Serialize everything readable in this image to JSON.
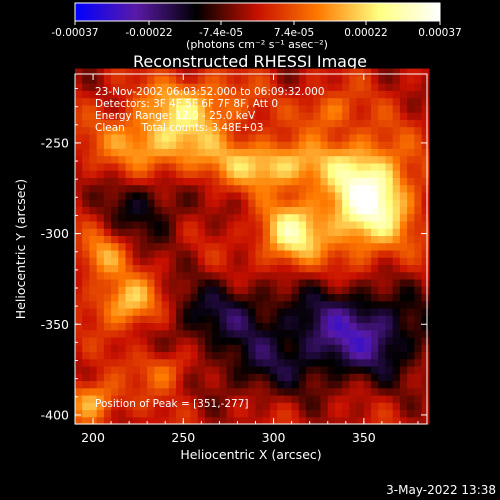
{
  "chart_data": {
    "type": "heatmap",
    "title": "Reconstructed RHESSI Image",
    "xlabel": "Heliocentric X (arcsec)",
    "ylabel": "Heliocentric Y (arcsec)",
    "xlim": [
      190,
      385
    ],
    "ylim": [
      -405,
      -212
    ],
    "xticks": [
      "200",
      "250",
      "300",
      "350"
    ],
    "xtick_values": [
      200,
      250,
      300,
      350
    ],
    "yticks": [
      "-250",
      "-300",
      "-350",
      "-400"
    ],
    "ytick_values": [
      -250,
      -300,
      -350,
      -400
    ],
    "colorbar": {
      "tick_labels": [
        "-0.00037",
        "-0.00022",
        "-7.4e-05",
        "7.4e-05",
        "0.00022",
        "0.00037"
      ],
      "tick_values": [
        -0.00037,
        -0.00022,
        -7.4e-05,
        7.4e-05,
        0.00022,
        0.00037
      ],
      "range": [
        -0.00037,
        0.00037
      ],
      "unit_label": "(photons cm⁻² s⁻¹ asec⁻²)",
      "colors": [
        "#0000ff",
        "#5a1aa8",
        "#000000",
        "#c81000",
        "#ff7a00",
        "#ffff80",
        "#ffffff"
      ]
    },
    "annotations": [
      "23-Nov-2002 06:03:52.000 to 06:09:32.000",
      "Detectors: 3F 4F 5F 6F 7F 8F, Att 0",
      "Energy Range: 12.0 - 25.0 keV",
      "Clean     Total counts: 3.48E+03"
    ],
    "peak_label": "Position of Peak = [351,-277]",
    "peak": {
      "x": 351,
      "y": -277
    },
    "sources": [
      {
        "x": 352,
        "y": -280,
        "sx": 16,
        "sy": 20,
        "amp": 0.00036
      },
      {
        "x": 310,
        "y": -300,
        "sx": 12,
        "sy": 12,
        "amp": 0.00026
      },
      {
        "x": 300,
        "y": -262,
        "sx": 22,
        "sy": 9,
        "amp": 0.00022
      },
      {
        "x": 238,
        "y": -250,
        "sx": 24,
        "sy": 12,
        "amp": 0.0002
      },
      {
        "x": 255,
        "y": -228,
        "sx": 20,
        "sy": 10,
        "amp": 0.00017
      },
      {
        "x": 220,
        "y": -338,
        "sx": 12,
        "sy": 10,
        "amp": 0.00022
      },
      {
        "x": 205,
        "y": -312,
        "sx": 9,
        "sy": 9,
        "amp": 0.00015
      },
      {
        "x": 200,
        "y": -392,
        "sx": 10,
        "sy": 8,
        "amp": 0.00018
      },
      {
        "x": 240,
        "y": -375,
        "sx": 10,
        "sy": 8,
        "amp": 0.00012
      },
      {
        "x": 330,
        "y": -232,
        "sx": 10,
        "sy": 8,
        "amp": 0.00012
      },
      {
        "x": 345,
        "y": -355,
        "sx": 28,
        "sy": 18,
        "amp": -0.00024
      },
      {
        "x": 270,
        "y": -345,
        "sx": 25,
        "sy": 14,
        "amp": -0.00014
      },
      {
        "x": 230,
        "y": -285,
        "sx": 18,
        "sy": 14,
        "amp": -0.00012
      },
      {
        "x": 290,
        "y": -375,
        "sx": 20,
        "sy": 12,
        "amp": -0.0001
      }
    ]
  },
  "footer_date": "3-May-2022 13:38"
}
